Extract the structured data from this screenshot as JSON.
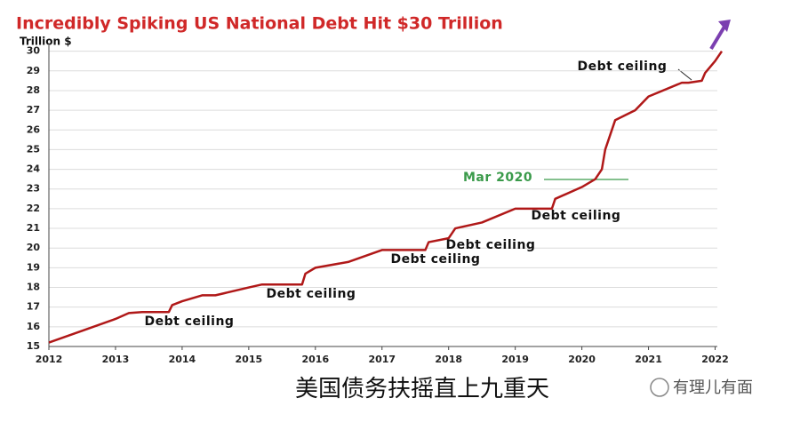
{
  "chart_data": {
    "type": "line",
    "title": "Incredibly Spiking US National Debt Hit $30 Trillion",
    "y_label": "Trillion $",
    "x": [
      2012.0,
      2012.5,
      2013.0,
      2013.2,
      2013.4,
      2013.8,
      2013.85,
      2014.0,
      2014.3,
      2014.5,
      2015.0,
      2015.2,
      2015.8,
      2015.85,
      2016.0,
      2016.5,
      2017.0,
      2017.2,
      2017.65,
      2017.7,
      2018.0,
      2018.1,
      2018.5,
      2019.0,
      2019.2,
      2019.55,
      2019.6,
      2020.0,
      2020.2,
      2020.3,
      2020.35,
      2020.5,
      2020.8,
      2021.0,
      2021.5,
      2021.6,
      2021.8,
      2021.85,
      2022.0,
      2022.1
    ],
    "values": [
      15.2,
      15.8,
      16.4,
      16.7,
      16.75,
      16.75,
      17.1,
      17.3,
      17.6,
      17.6,
      18.0,
      18.15,
      18.15,
      18.7,
      19.0,
      19.3,
      19.9,
      19.9,
      19.9,
      20.3,
      20.5,
      21.0,
      21.3,
      22.0,
      22.0,
      22.0,
      22.5,
      23.1,
      23.5,
      24.0,
      25.0,
      26.5,
      27.0,
      27.7,
      28.4,
      28.4,
      28.5,
      28.9,
      29.5,
      30.0
    ],
    "color": "#b01818",
    "xlim": [
      2012,
      2022.3
    ],
    "xticks": [
      2012,
      2013,
      2014,
      2015,
      2016,
      2017,
      2018,
      2019,
      2020,
      2021,
      2022
    ],
    "ylim": [
      15,
      30.3
    ],
    "yticks": [
      15,
      16,
      17,
      18,
      19,
      20,
      21,
      22,
      23,
      24,
      25,
      26,
      27,
      28,
      29,
      30
    ],
    "grid": true,
    "annotations": [
      {
        "text": "Debt ceiling",
        "color": "#111111"
      },
      {
        "text": "Mar 2020",
        "color": "#3a9a4a"
      },
      {
        "text": "Debt ceiling",
        "color": "#111111"
      },
      {
        "text": "Debt ceiling",
        "color": "#111111"
      },
      {
        "text": "Debt ceiling",
        "color": "#111111"
      },
      {
        "text": "Debt ceiling",
        "color": "#111111"
      },
      {
        "text": "Debt ceiling",
        "color": "#111111"
      }
    ]
  },
  "caption": "美国债务扶摇直上九重天",
  "watermark": "有理儿有面"
}
